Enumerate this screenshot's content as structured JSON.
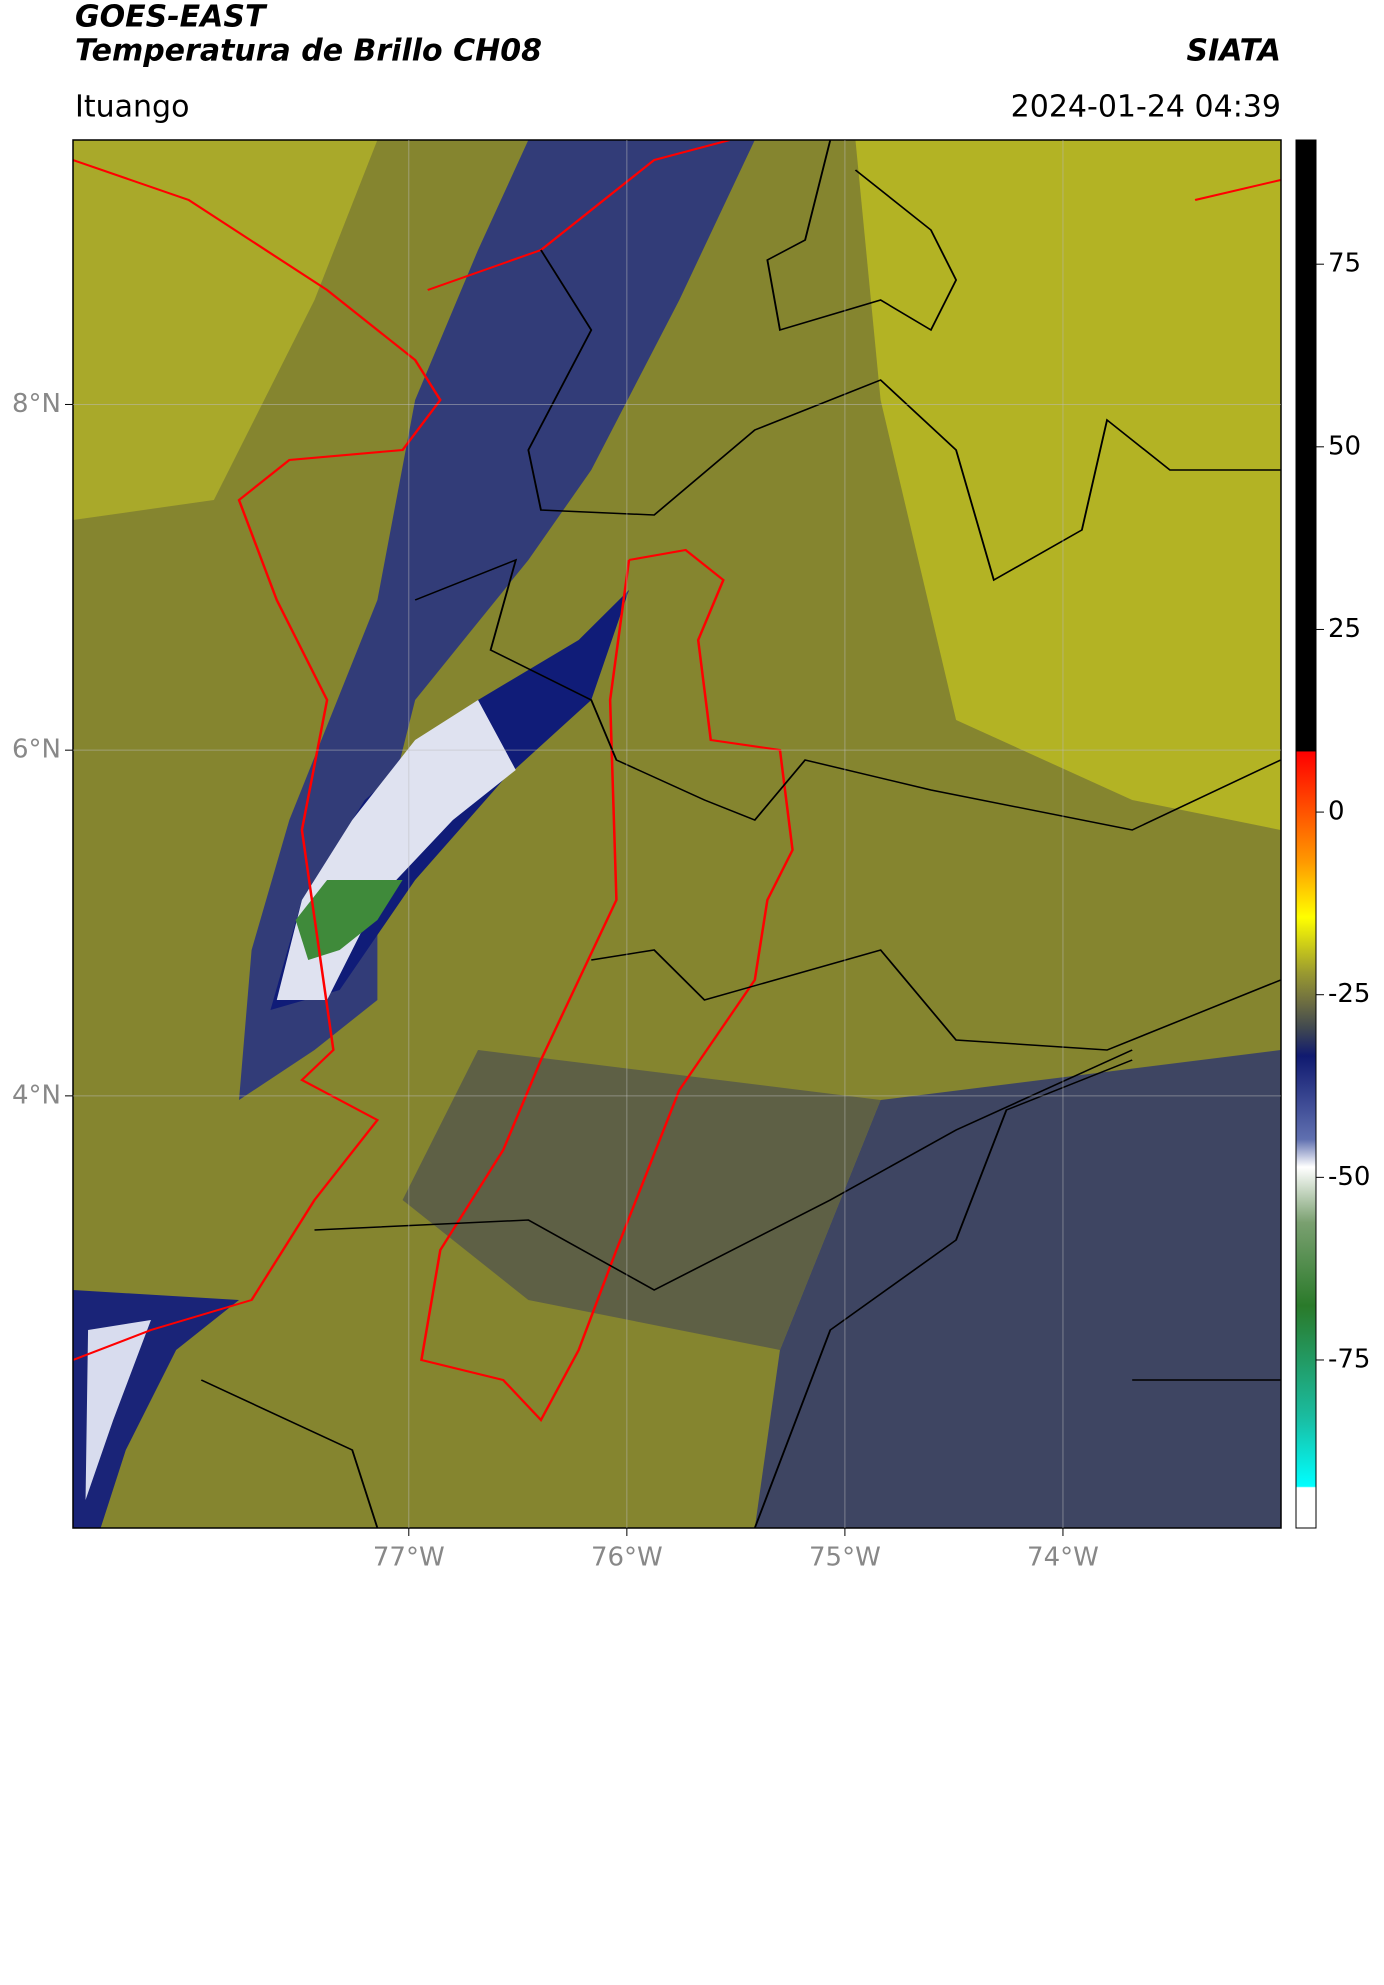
{
  "chart_data": {
    "type": "map",
    "title": "GOES-EAST",
    "subtitle": "Temperatura de Brillo CH08",
    "source": "SIATA",
    "region": "Ituango",
    "datetime": "2024-01-24 04:39",
    "xlim": [
      -78.54,
      -73.0
    ],
    "ylim": [
      1.5,
      9.53
    ],
    "xticks": [
      {
        "value": -77,
        "label": "77°W"
      },
      {
        "value": -76,
        "label": "76°W"
      },
      {
        "value": -75,
        "label": "75°W"
      },
      {
        "value": -74,
        "label": "74°W"
      }
    ],
    "yticks": [
      {
        "value": 4,
        "label": "4°N"
      },
      {
        "value": 6,
        "label": "6°N"
      },
      {
        "value": 8,
        "label": "8°N"
      }
    ],
    "grid": true,
    "colorbar": {
      "lim": [
        -98,
        92
      ],
      "ticks": [
        -75,
        -50,
        -25,
        0,
        25,
        50,
        75
      ]
    }
  }
}
